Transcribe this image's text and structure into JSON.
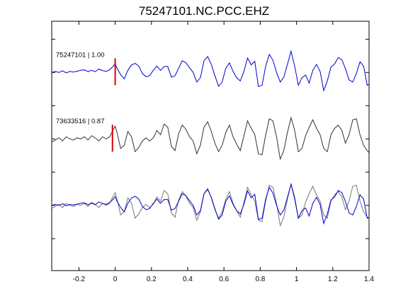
{
  "chart_data": {
    "type": "line",
    "title": "75247101.NC.PCC.EHZ",
    "xlabel": "",
    "ylabel": "",
    "xlim": [
      -0.35,
      1.4
    ],
    "x_ticks": [
      -0.2,
      0,
      0.2,
      0.4,
      0.6,
      0.8,
      1.0,
      1.2,
      1.4
    ],
    "x_tick_labels": [
      "-0.2",
      "0",
      "0.2",
      "0.4",
      "0.6",
      "0.8",
      "1",
      "1.2",
      "1.4"
    ],
    "grid": false,
    "traces": [
      {
        "label": "75247101 | 1.00",
        "color": "#0000cc",
        "pick_time": 0.0,
        "pick_color": "#dd0000",
        "x": [
          -0.35,
          -0.33,
          -0.31,
          -0.29,
          -0.27,
          -0.25,
          -0.23,
          -0.21,
          -0.19,
          -0.17,
          -0.15,
          -0.13,
          -0.11,
          -0.09,
          -0.07,
          -0.05,
          -0.03,
          -0.01,
          0.0,
          0.01,
          0.03,
          0.05,
          0.07,
          0.09,
          0.11,
          0.13,
          0.15,
          0.17,
          0.19,
          0.21,
          0.23,
          0.25,
          0.27,
          0.29,
          0.31,
          0.33,
          0.35,
          0.37,
          0.39,
          0.41,
          0.43,
          0.45,
          0.47,
          0.49,
          0.51,
          0.53,
          0.55,
          0.57,
          0.59,
          0.61,
          0.63,
          0.65,
          0.67,
          0.69,
          0.71,
          0.73,
          0.75,
          0.77,
          0.79,
          0.81,
          0.83,
          0.85,
          0.87,
          0.89,
          0.91,
          0.93,
          0.95,
          0.97,
          0.99,
          1.01,
          1.03,
          1.05,
          1.07,
          1.09,
          1.11,
          1.13,
          1.15,
          1.17,
          1.19,
          1.21,
          1.23,
          1.25,
          1.27,
          1.29,
          1.31,
          1.33,
          1.35,
          1.37,
          1.39,
          1.4
        ],
        "y": [
          0.0,
          0.05,
          0.0,
          0.08,
          -0.02,
          0.05,
          0.02,
          0.06,
          0.1,
          0.12,
          0.04,
          0.1,
          0.04,
          0.16,
          0.09,
          0.05,
          0.13,
          0.3,
          0.42,
          0.2,
          -0.1,
          -0.3,
          0.1,
          0.35,
          0.43,
          0.3,
          -0.05,
          -0.2,
          -0.15,
          0.1,
          0.3,
          0.1,
          0.28,
          0.28,
          -0.22,
          -0.15,
          0.2,
          0.55,
          0.46,
          0.22,
          0.0,
          -0.45,
          -0.25,
          0.55,
          0.75,
          0.38,
          -0.15,
          -0.65,
          -0.45,
          0.2,
          0.45,
          0.05,
          -0.25,
          -0.4,
          0.05,
          0.68,
          0.36,
          0.52,
          -0.66,
          -0.6,
          0.3,
          0.85,
          0.58,
          0.0,
          -0.45,
          -0.22,
          0.38,
          1.0,
          0.3,
          -0.6,
          -0.25,
          -0.12,
          -0.5,
          0.1,
          0.38,
          0.05,
          -0.85,
          -0.4,
          0.25,
          0.4,
          0.7,
          0.6,
          0.18,
          -0.35,
          -0.45,
          -0.05,
          0.5,
          0.3,
          -0.6,
          -0.55
        ]
      },
      {
        "label": "73633516 | 0.87",
        "color": "#333333",
        "pick_time": -0.015,
        "pick_color": "#dd0000",
        "x": [
          -0.35,
          -0.33,
          -0.31,
          -0.29,
          -0.27,
          -0.25,
          -0.23,
          -0.21,
          -0.19,
          -0.17,
          -0.15,
          -0.13,
          -0.11,
          -0.09,
          -0.07,
          -0.05,
          -0.03,
          -0.01,
          0.0,
          0.01,
          0.03,
          0.05,
          0.07,
          0.09,
          0.11,
          0.13,
          0.15,
          0.17,
          0.19,
          0.21,
          0.23,
          0.25,
          0.27,
          0.29,
          0.31,
          0.33,
          0.35,
          0.37,
          0.39,
          0.41,
          0.43,
          0.45,
          0.47,
          0.49,
          0.51,
          0.53,
          0.55,
          0.57,
          0.59,
          0.61,
          0.63,
          0.65,
          0.67,
          0.69,
          0.71,
          0.73,
          0.75,
          0.77,
          0.79,
          0.81,
          0.83,
          0.85,
          0.87,
          0.89,
          0.91,
          0.93,
          0.95,
          0.97,
          0.99,
          1.01,
          1.03,
          1.05,
          1.07,
          1.09,
          1.11,
          1.13,
          1.15,
          1.17,
          1.19,
          1.21,
          1.23,
          1.25,
          1.27,
          1.29,
          1.31,
          1.33,
          1.35,
          1.37,
          1.39,
          1.4
        ],
        "y": [
          -0.15,
          -0.05,
          0.05,
          -0.1,
          0.1,
          0.0,
          -0.05,
          0.05,
          0.0,
          0.1,
          -0.05,
          0.15,
          0.05,
          -0.1,
          0.1,
          0.0,
          0.1,
          0.45,
          0.6,
          0.3,
          -0.45,
          -0.3,
          0.35,
          0.1,
          -0.6,
          -0.4,
          -0.1,
          0.05,
          -0.1,
          0.05,
          0.4,
          0.2,
          0.7,
          0.55,
          -0.35,
          -0.55,
          0.25,
          0.65,
          0.45,
          0.1,
          -0.1,
          -0.7,
          -0.3,
          0.55,
          0.8,
          0.35,
          -0.2,
          -0.6,
          -0.3,
          0.3,
          0.65,
          0.1,
          -0.25,
          -0.55,
          0.15,
          0.85,
          0.5,
          0.2,
          -0.7,
          -0.75,
          0.2,
          0.95,
          0.85,
          0.1,
          -0.95,
          -0.55,
          0.3,
          1.0,
          0.4,
          -0.6,
          -0.45,
          0.15,
          0.55,
          0.9,
          0.5,
          0.2,
          -0.45,
          -0.6,
          0.2,
          0.5,
          0.65,
          0.4,
          -0.2,
          0.2,
          0.9,
          0.95,
          0.2,
          -0.3,
          -0.55,
          -0.65
        ]
      }
    ]
  }
}
